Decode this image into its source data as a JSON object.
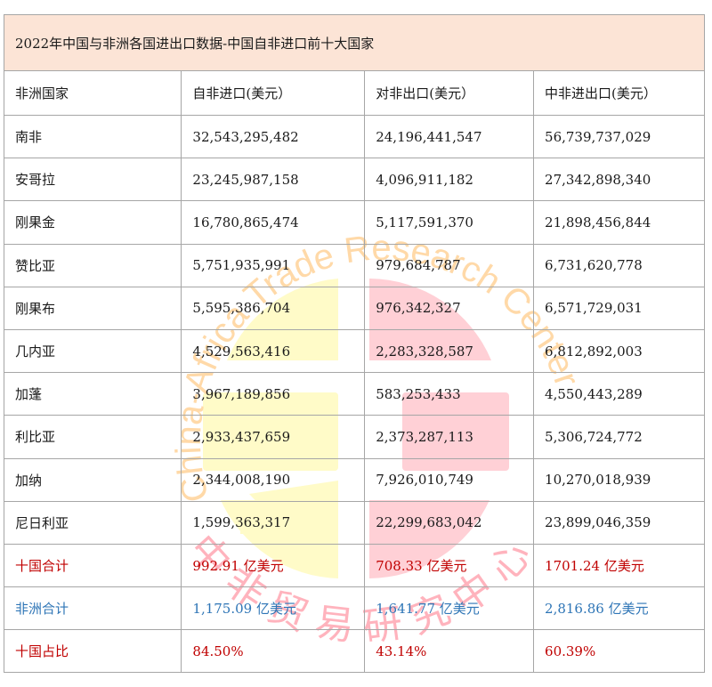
{
  "title": "2022年中国与非洲各国进出口数据-中国自非进口前十大国家",
  "columns": [
    "非洲国家",
    "自非进口(美元）",
    "对非出口(美元）",
    "中非进出口(美元）"
  ],
  "rows": [
    {
      "country": "南非",
      "import": "32,543,295,482",
      "export": "24,196,441,547",
      "total": "56,739,737,029"
    },
    {
      "country": "安哥拉",
      "import": "23,245,987,158",
      "export": "4,096,911,182",
      "total": "27,342,898,340"
    },
    {
      "country": "刚果金",
      "import": "16,780,865,474",
      "export": "5,117,591,370",
      "total": "21,898,456,844"
    },
    {
      "country": "赞比亚",
      "import": "5,751,935,991",
      "export": "979,684,787",
      "total": "6,731,620,778"
    },
    {
      "country": "刚果布",
      "import": "5,595,386,704",
      "export": "976,342,327",
      "total": "6,571,729,031"
    },
    {
      "country": "几内亚",
      "import": "4,529,563,416",
      "export": "2,283,328,587",
      "total": "6,812,892,003"
    },
    {
      "country": "加蓬",
      "import": "3,967,189,856",
      "export": "583,253,433",
      "total": "4,550,443,289"
    },
    {
      "country": "利比亚",
      "import": "2,933,437,659",
      "export": "2,373,287,113",
      "total": "5,306,724,772"
    },
    {
      "country": "加纳",
      "import": "2,344,008,190",
      "export": "7,926,010,749",
      "total": "10,270,018,939"
    },
    {
      "country": "尼日利亚",
      "import": "1,599,363,317",
      "export": "22,299,683,042",
      "total": "23,899,046,359"
    }
  ],
  "summary": [
    {
      "label": "十国合计",
      "import": "992.91 亿美元",
      "export": "708.33 亿美元",
      "total": "1701.24 亿美元",
      "color": "#c00000"
    },
    {
      "label": "非洲合计",
      "import": "1,175.09 亿美元",
      "export": "1,641.77 亿美元",
      "total": "2,816.86 亿美元",
      "color": "#2e75b6"
    },
    {
      "label": "十国占比",
      "import": "84.50%",
      "export": "43.14%",
      "total": "60.39%",
      "color": "#c00000"
    }
  ],
  "watermark": {
    "ring_text_en": "China-Africa Trade Research Center",
    "ring_text_zh": "中非贸易研究中心",
    "colors": {
      "yellow": "#fffbc8",
      "pink": "#ffd0d6",
      "ring_en": "#ffd9a8",
      "ring_zh": "#ffb3bd"
    }
  },
  "colors": {
    "title_bg": "#fce4d6",
    "border": "#a6a6a6",
    "red": "#c00000",
    "blue": "#2e75b6"
  }
}
